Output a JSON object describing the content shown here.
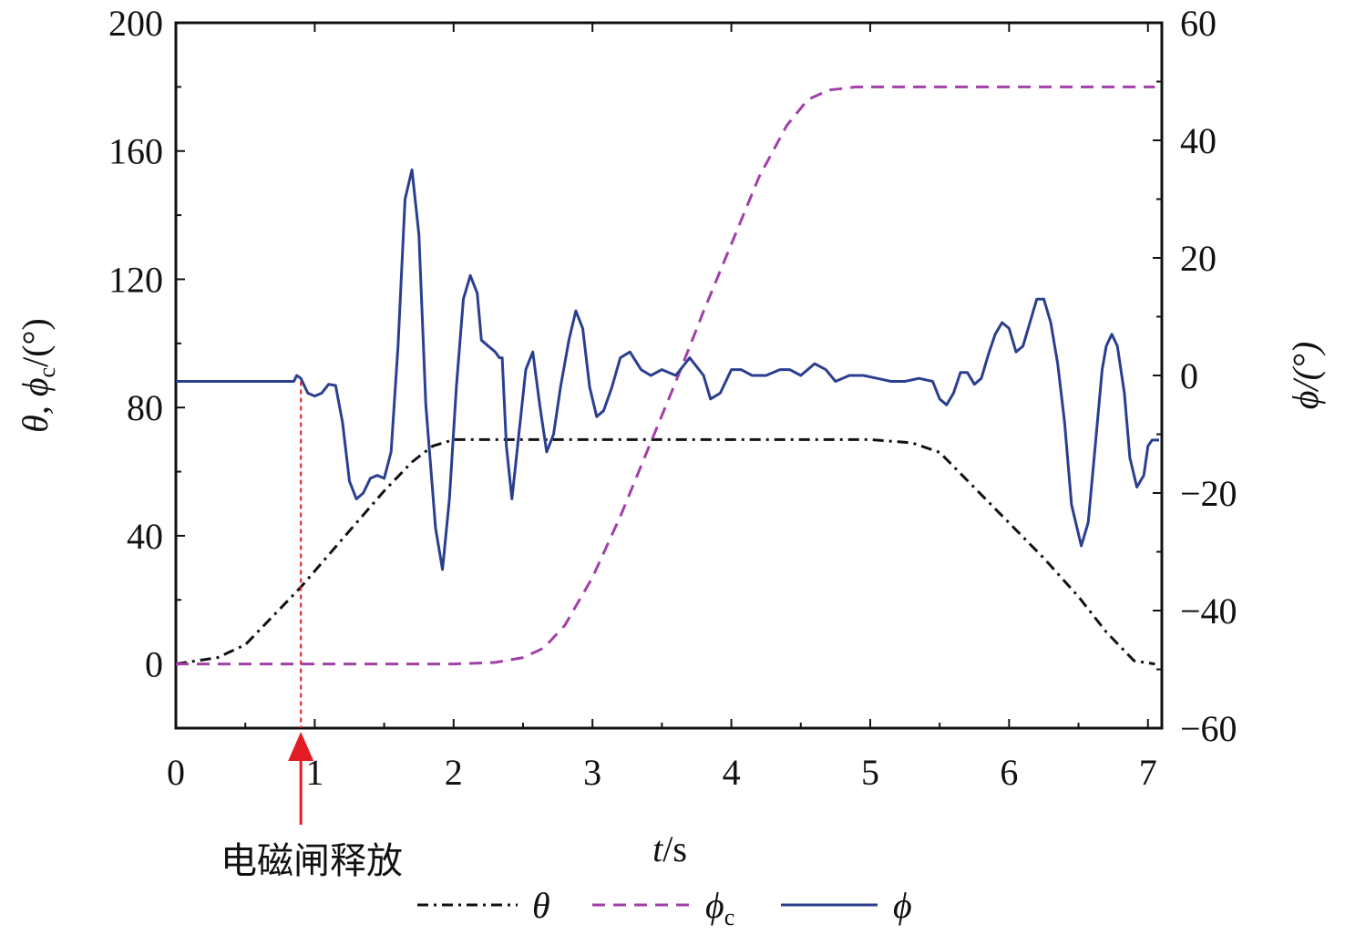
{
  "chart_data": {
    "type": "line",
    "x": {
      "label_var": "t",
      "label_unit": "/s",
      "range": [
        0,
        7.1
      ],
      "ticks": [
        "0",
        "1",
        "2",
        "3",
        "4",
        "5",
        "6",
        "7"
      ]
    },
    "y_left": {
      "label": "θ, ϕ",
      "label_sub": "c",
      "label_unit": "/(°)",
      "range": [
        -20,
        200
      ],
      "ticks": [
        "0",
        "40",
        "80",
        "120",
        "160",
        "200"
      ]
    },
    "y_right": {
      "label": "ϕ/(°)",
      "range": [
        -60,
        60
      ],
      "ticks": [
        "−60",
        "−40",
        "−20",
        "0",
        "20",
        "40",
        "60"
      ]
    },
    "series": [
      {
        "name": "θ",
        "axis": "left",
        "style": "dash-dot",
        "color": "#111111",
        "points": [
          [
            0,
            0
          ],
          [
            0.3,
            2
          ],
          [
            0.5,
            6
          ],
          [
            0.7,
            15
          ],
          [
            0.9,
            24
          ],
          [
            1.1,
            34
          ],
          [
            1.3,
            44
          ],
          [
            1.5,
            54
          ],
          [
            1.7,
            63
          ],
          [
            1.85,
            68
          ],
          [
            2.0,
            70
          ],
          [
            3,
            70
          ],
          [
            4,
            70
          ],
          [
            5,
            70
          ],
          [
            5.3,
            69
          ],
          [
            5.5,
            66
          ],
          [
            5.75,
            55
          ],
          [
            6.0,
            44
          ],
          [
            6.25,
            33
          ],
          [
            6.5,
            21
          ],
          [
            6.7,
            10
          ],
          [
            6.9,
            1
          ],
          [
            7.05,
            0
          ]
        ]
      },
      {
        "name": "ϕ",
        "name_sub": "c",
        "axis": "left",
        "style": "dash",
        "color": "#a23fa8",
        "points": [
          [
            0,
            0
          ],
          [
            1,
            0
          ],
          [
            2,
            0
          ],
          [
            2.3,
            0.5
          ],
          [
            2.5,
            2
          ],
          [
            2.65,
            5
          ],
          [
            2.8,
            12
          ],
          [
            3.0,
            27
          ],
          [
            3.2,
            46
          ],
          [
            3.4,
            67
          ],
          [
            3.6,
            88
          ],
          [
            3.8,
            110
          ],
          [
            4.0,
            131
          ],
          [
            4.2,
            152
          ],
          [
            4.4,
            168
          ],
          [
            4.55,
            176
          ],
          [
            4.7,
            179
          ],
          [
            4.9,
            180
          ],
          [
            7.05,
            180
          ]
        ]
      },
      {
        "name": "ϕ",
        "axis": "right",
        "style": "solid",
        "color": "#2b3f8f",
        "points": [
          [
            0,
            -1
          ],
          [
            0.85,
            -1
          ],
          [
            0.87,
            0
          ],
          [
            0.9,
            -0.5
          ],
          [
            0.95,
            -3
          ],
          [
            1.0,
            -3.5
          ],
          [
            1.05,
            -3
          ],
          [
            1.1,
            -1.5
          ],
          [
            1.15,
            -1.7
          ],
          [
            1.2,
            -8
          ],
          [
            1.25,
            -18
          ],
          [
            1.3,
            -21
          ],
          [
            1.35,
            -20
          ],
          [
            1.4,
            -17.5
          ],
          [
            1.45,
            -17
          ],
          [
            1.5,
            -17.5
          ],
          [
            1.55,
            -13
          ],
          [
            1.6,
            5
          ],
          [
            1.65,
            30
          ],
          [
            1.7,
            35
          ],
          [
            1.75,
            24
          ],
          [
            1.8,
            -5
          ],
          [
            1.87,
            -26
          ],
          [
            1.92,
            -33
          ],
          [
            1.97,
            -21
          ],
          [
            2.02,
            -2
          ],
          [
            2.07,
            13
          ],
          [
            2.12,
            17
          ],
          [
            2.17,
            14
          ],
          [
            2.2,
            6
          ],
          [
            2.25,
            5
          ],
          [
            2.3,
            4
          ],
          [
            2.33,
            3
          ],
          [
            2.35,
            3
          ],
          [
            2.38,
            -12
          ],
          [
            2.42,
            -21
          ],
          [
            2.47,
            -10
          ],
          [
            2.52,
            1
          ],
          [
            2.57,
            4
          ],
          [
            2.62,
            -5
          ],
          [
            2.67,
            -13
          ],
          [
            2.72,
            -10
          ],
          [
            2.77,
            -2
          ],
          [
            2.83,
            6
          ],
          [
            2.88,
            11
          ],
          [
            2.93,
            8
          ],
          [
            2.98,
            -2
          ],
          [
            3.03,
            -7
          ],
          [
            3.08,
            -6
          ],
          [
            3.14,
            -2
          ],
          [
            3.2,
            3
          ],
          [
            3.27,
            4
          ],
          [
            3.35,
            1
          ],
          [
            3.42,
            0
          ],
          [
            3.5,
            1
          ],
          [
            3.6,
            0
          ],
          [
            3.7,
            3
          ],
          [
            3.8,
            0
          ],
          [
            3.85,
            -4
          ],
          [
            3.92,
            -3
          ],
          [
            4.0,
            1
          ],
          [
            4.07,
            1
          ],
          [
            4.15,
            0
          ],
          [
            4.25,
            0
          ],
          [
            4.35,
            1
          ],
          [
            4.42,
            1
          ],
          [
            4.5,
            0
          ],
          [
            4.6,
            2
          ],
          [
            4.68,
            1
          ],
          [
            4.75,
            -1
          ],
          [
            4.85,
            0
          ],
          [
            4.95,
            0
          ],
          [
            5.05,
            -0.5
          ],
          [
            5.15,
            -1
          ],
          [
            5.25,
            -1
          ],
          [
            5.35,
            -0.5
          ],
          [
            5.45,
            -1
          ],
          [
            5.5,
            -4
          ],
          [
            5.55,
            -5
          ],
          [
            5.6,
            -3
          ],
          [
            5.65,
            0.5
          ],
          [
            5.7,
            0.5
          ],
          [
            5.75,
            -1.5
          ],
          [
            5.8,
            -0.5
          ],
          [
            5.85,
            3.5
          ],
          [
            5.9,
            7
          ],
          [
            5.95,
            9
          ],
          [
            6.0,
            8
          ],
          [
            6.05,
            4
          ],
          [
            6.1,
            5
          ],
          [
            6.15,
            9
          ],
          [
            6.2,
            13
          ],
          [
            6.25,
            13
          ],
          [
            6.3,
            9
          ],
          [
            6.35,
            2
          ],
          [
            6.4,
            -8
          ],
          [
            6.45,
            -22
          ],
          [
            6.52,
            -29
          ],
          [
            6.57,
            -25
          ],
          [
            6.62,
            -12
          ],
          [
            6.67,
            1
          ],
          [
            6.7,
            5
          ],
          [
            6.74,
            7
          ],
          [
            6.78,
            5
          ],
          [
            6.83,
            -3
          ],
          [
            6.87,
            -14
          ],
          [
            6.92,
            -19
          ],
          [
            6.97,
            -17
          ],
          [
            7.0,
            -12
          ],
          [
            7.03,
            -11
          ],
          [
            7.08,
            -11
          ]
        ]
      }
    ],
    "legend": {
      "placement": "bottom-center",
      "entries": [
        {
          "label": "θ",
          "sub": ""
        },
        {
          "label": "ϕ",
          "sub": "c"
        },
        {
          "label": "ϕ",
          "sub": ""
        }
      ]
    },
    "annotation": {
      "text": "电磁闸释放",
      "x": 0.9,
      "color": "#e31c23"
    },
    "grid": false
  }
}
